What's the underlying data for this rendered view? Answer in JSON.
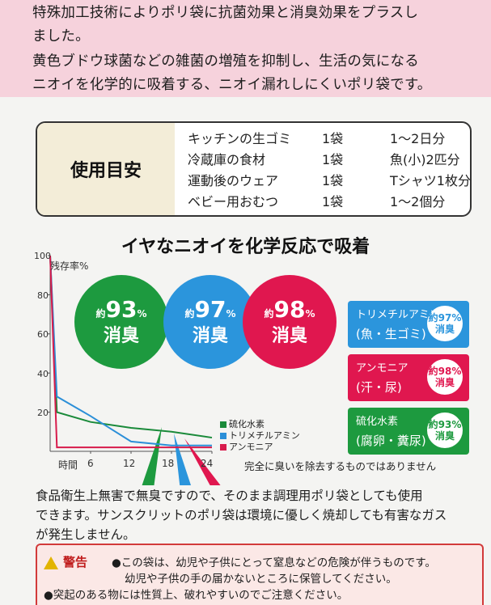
{
  "intro": {
    "lines": [
      "特殊加工技術によりポリ袋に抗菌効果と消臭効果をプラスし",
      "ました。",
      "黄色ブドウ球菌などの雑菌の増殖を抑制し、生活の気になる",
      "ニオイを化学的に吸着する、ニオイ漏れしにくいポリ袋です。"
    ]
  },
  "usage": {
    "label": "使用目安",
    "rows": [
      {
        "item": "キッチンの生ゴミ",
        "qty": "1袋",
        "amount": "1〜2日分"
      },
      {
        "item": "冷蔵庫の食材",
        "qty": "1袋",
        "amount": "魚(小)2匹分"
      },
      {
        "item": "運動後のウェア",
        "qty": "1袋",
        "amount": "Tシャツ1枚分"
      },
      {
        "item": "ベビー用おむつ",
        "qty": "1袋",
        "amount": "1〜2個分"
      }
    ]
  },
  "chart_heading": "イヤなニオイを化学反応で吸着",
  "chart_data": {
    "type": "line",
    "ylabel": "残存率%",
    "xlabel": "時間",
    "x_ticks": [
      "6",
      "12",
      "18",
      "24"
    ],
    "y_ticks": [
      "100",
      "80",
      "60",
      "40",
      "20"
    ],
    "ylim": [
      0,
      100
    ],
    "xlim": [
      0,
      24
    ],
    "series": [
      {
        "name": "硫化水素",
        "color": "#1a8a3a",
        "x": [
          0,
          1,
          6,
          12,
          18,
          24
        ],
        "y": [
          100,
          20,
          15,
          12,
          10,
          7
        ]
      },
      {
        "name": "トリメチルアミン",
        "color": "#2b8fd8",
        "x": [
          0,
          1,
          6,
          12,
          18,
          24
        ],
        "y": [
          100,
          28,
          18,
          5,
          3,
          3
        ]
      },
      {
        "name": "アンモニア",
        "color": "#d81b4c",
        "x": [
          0,
          1,
          6,
          12,
          18,
          24
        ],
        "y": [
          100,
          2,
          2,
          2,
          2,
          2
        ]
      }
    ]
  },
  "callouts": [
    {
      "prefix": "約",
      "value": "93",
      "unit": "%",
      "label": "消臭",
      "color": "#1d9a3f"
    },
    {
      "prefix": "約",
      "value": "97",
      "unit": "%",
      "label": "消臭",
      "color": "#2b95dc"
    },
    {
      "prefix": "約",
      "value": "98",
      "unit": "%",
      "label": "消臭",
      "color": "#e0174f"
    }
  ],
  "side_boxes": [
    {
      "title": "トリメチルアミン",
      "sub": "(魚・生ゴミ)",
      "mini_prefix": "約",
      "mini_value": "97%",
      "mini_label": "消臭",
      "color": "#2b95dc"
    },
    {
      "title": "アンモニア",
      "sub": "(汗・尿)",
      "mini_prefix": "約",
      "mini_value": "98%",
      "mini_label": "消臭",
      "color": "#e0174f"
    },
    {
      "title": "硫化水素",
      "sub": "(腐卵・糞尿)",
      "mini_prefix": "約",
      "mini_value": "93%",
      "mini_label": "消臭",
      "color": "#1d9a3f"
    }
  ],
  "chart_note": "完全に臭いを除去するものではありません",
  "body": {
    "lines": [
      "食品衛生上無害で無臭ですので、そのまま調理用ポリ袋としても使用",
      "できます。サンスクリットのポリ袋は環境に優しく焼却しても有害なガス",
      "が発生しません。"
    ]
  },
  "warning": {
    "title": "警告",
    "lines": [
      "●この袋は、幼児や子供にとって窒息などの危険が伴うものです。",
      "幼児や子供の手の届かないところに保管してください。",
      "●突起のある物には性質上、破れやすいのでご注意ください。"
    ]
  }
}
